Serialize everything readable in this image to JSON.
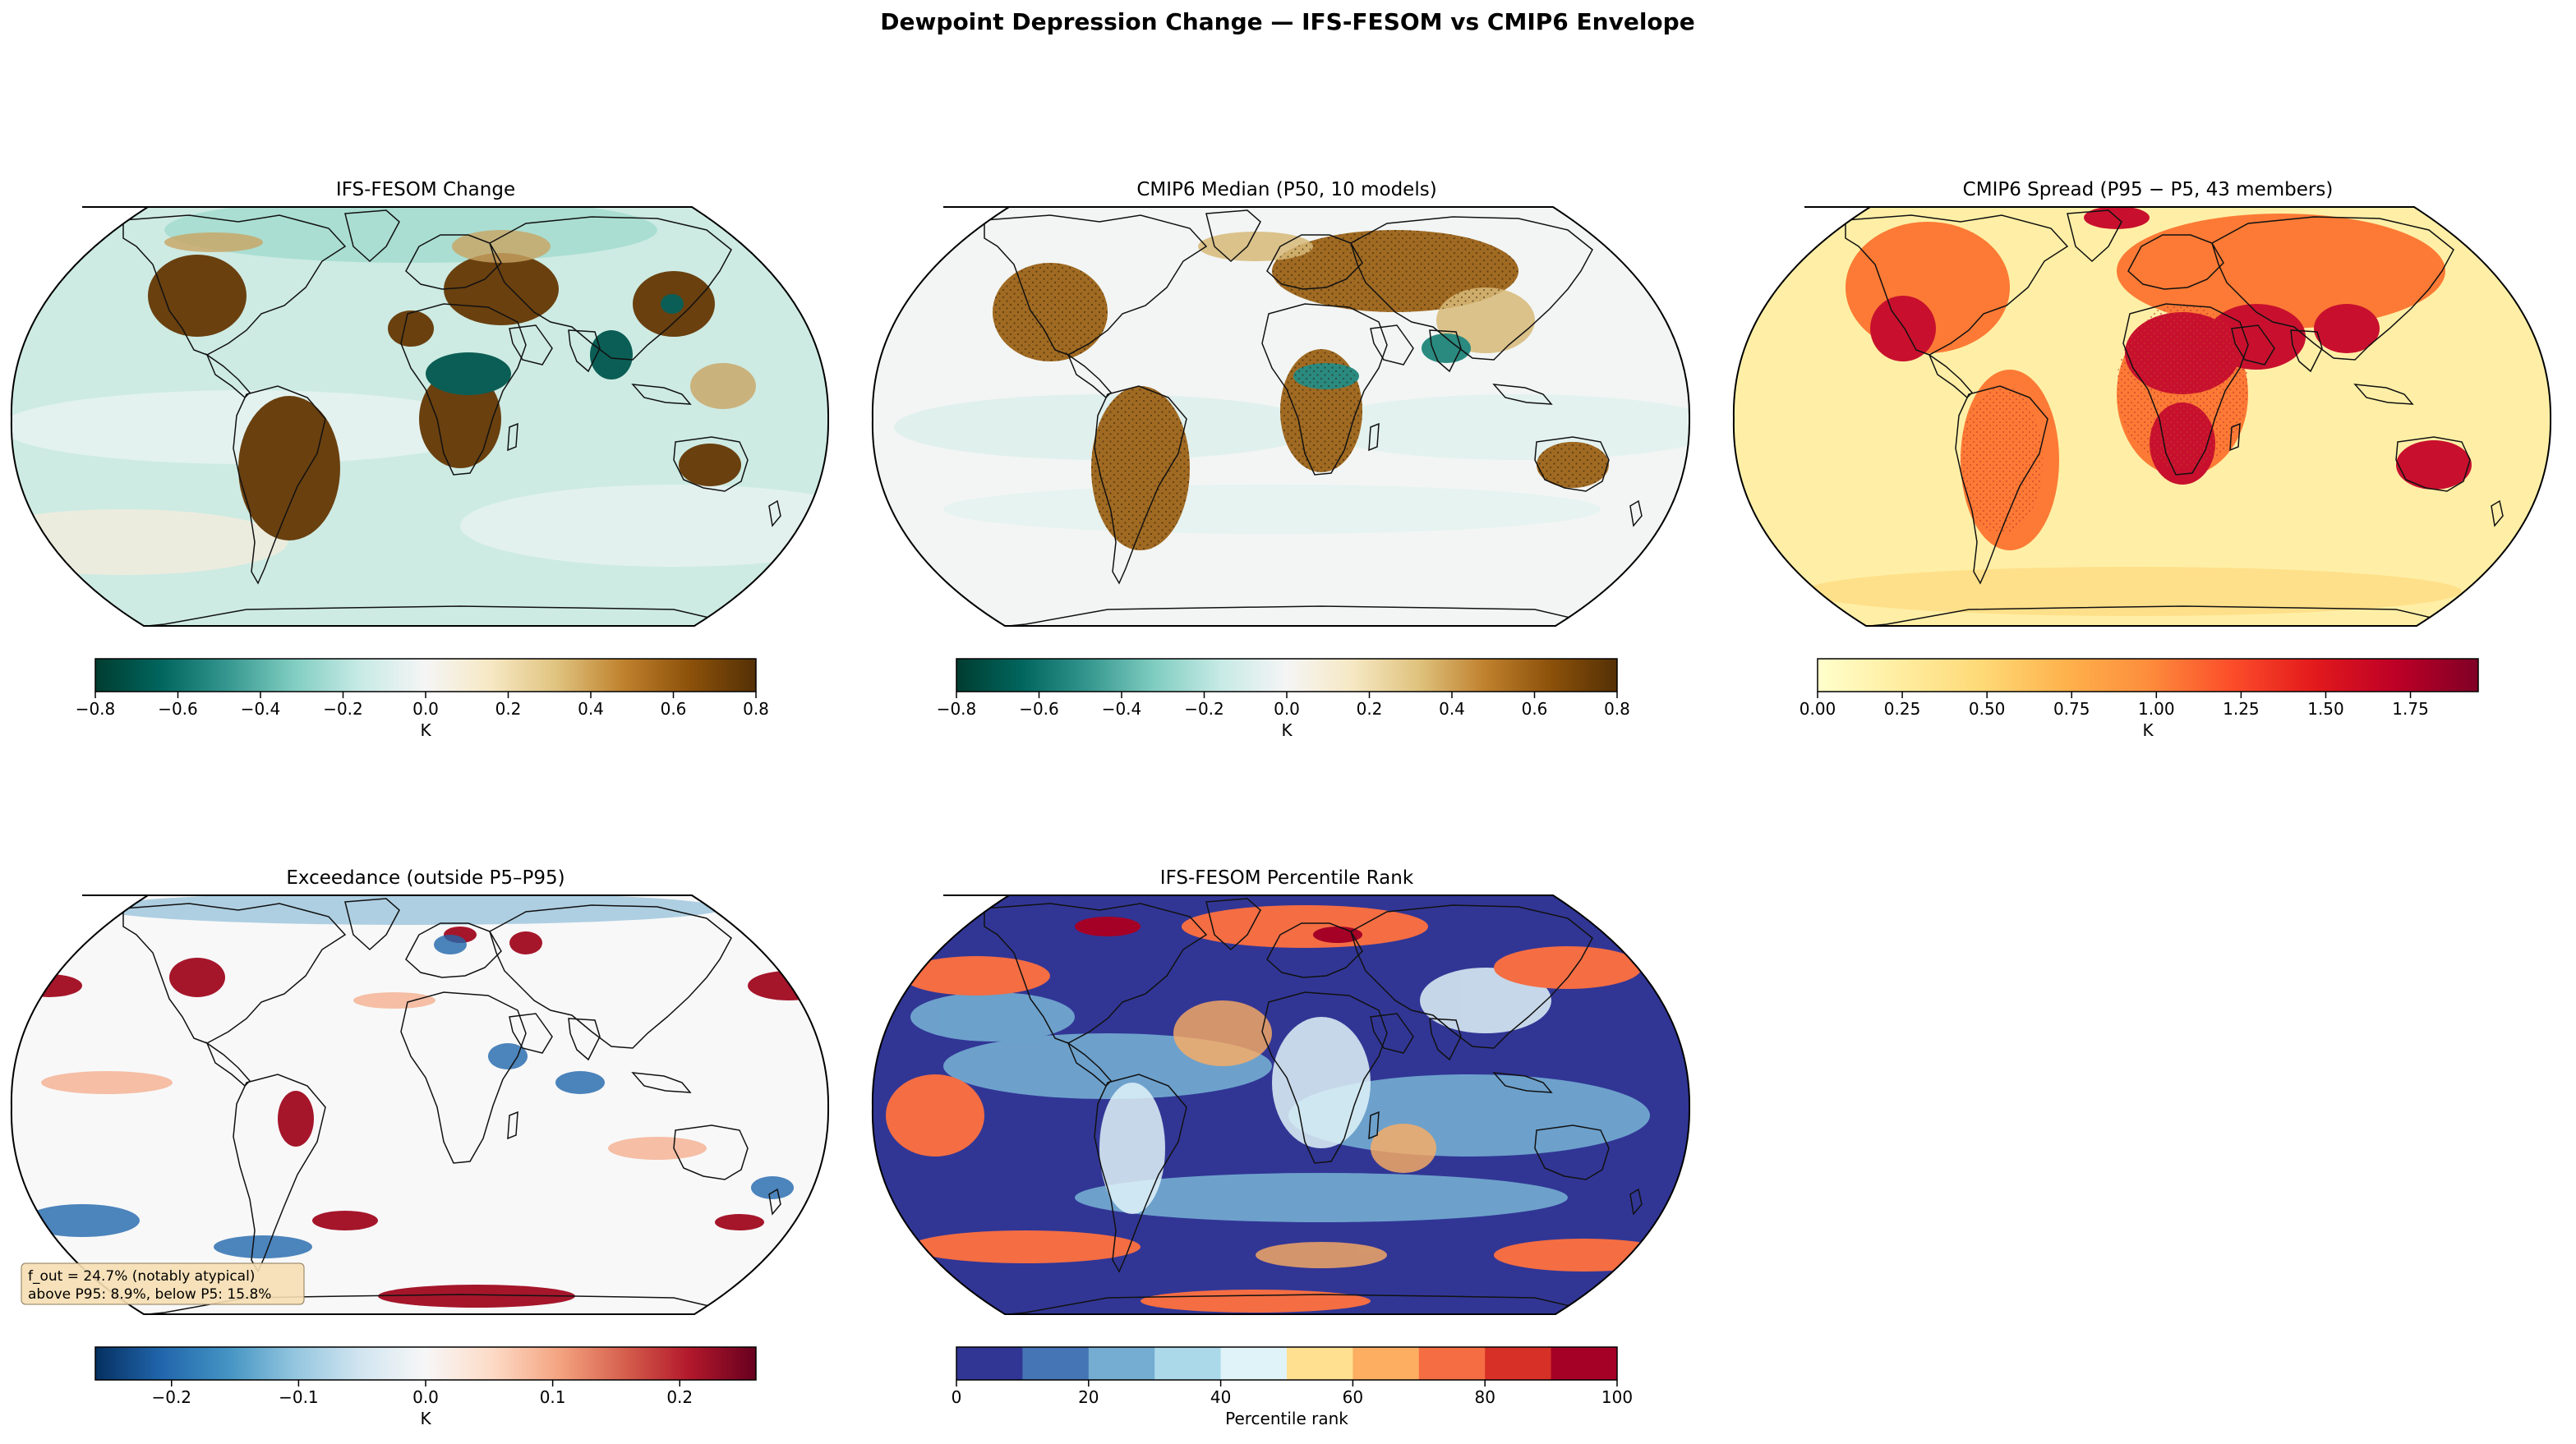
{
  "figure": {
    "title": "Dewpoint Depression Change — IFS-FESOM vs CMIP6 Envelope"
  },
  "colormaps": {
    "BrBG_r": [
      "#003c30",
      "#01665e",
      "#35978f",
      "#80cdc1",
      "#c7eae5",
      "#f5f5f5",
      "#f6e8c3",
      "#dfc27d",
      "#bf812d",
      "#8c510a",
      "#543005"
    ],
    "YlOrRd": [
      "#ffffcc",
      "#ffeda0",
      "#fed976",
      "#feb24c",
      "#fd8d3c",
      "#fc4e2a",
      "#e31a1c",
      "#bd0026",
      "#800026"
    ],
    "RdBu_r": [
      "#053061",
      "#2166ac",
      "#4393c3",
      "#92c5de",
      "#d1e5f0",
      "#f7f7f7",
      "#fddbc7",
      "#f4a582",
      "#d6604d",
      "#b2182b",
      "#67001f"
    ],
    "RdYlBu_r_10": [
      "#313695",
      "#4575b4",
      "#74add1",
      "#abd9e9",
      "#e0f3f8",
      "#fee090",
      "#fdae61",
      "#f46d43",
      "#d73027",
      "#a50026"
    ]
  },
  "panels": [
    {
      "id": "ifs-fesom-change",
      "title": "IFS-FESOM Change",
      "cmap": "BrBG_r",
      "colorbar": {
        "label": "K",
        "vmin": -0.8,
        "vmax": 0.8,
        "discrete": false,
        "ticks": [
          -0.8,
          -0.6,
          -0.4,
          -0.2,
          0.0,
          0.2,
          0.4,
          0.6,
          0.8
        ],
        "tick_labels": [
          "−0.8",
          "−0.6",
          "−0.4",
          "−0.2",
          "0.0",
          "0.2",
          "0.4",
          "0.6",
          "0.8"
        ]
      }
    },
    {
      "id": "cmip6-median",
      "title": "CMIP6 Median (P50, 10 models)",
      "cmap": "BrBG_r",
      "colorbar": {
        "label": "K",
        "vmin": -0.8,
        "vmax": 0.8,
        "discrete": false,
        "ticks": [
          -0.8,
          -0.6,
          -0.4,
          -0.2,
          0.0,
          0.2,
          0.4,
          0.6,
          0.8
        ],
        "tick_labels": [
          "−0.8",
          "−0.6",
          "−0.4",
          "−0.2",
          "0.0",
          "0.2",
          "0.4",
          "0.6",
          "0.8"
        ]
      }
    },
    {
      "id": "cmip6-spread",
      "title": "CMIP6 Spread (P95 − P5, 43 members)",
      "cmap": "YlOrRd",
      "colorbar": {
        "label": "K",
        "vmin": 0.0,
        "vmax": 1.95,
        "discrete": false,
        "ticks": [
          0.0,
          0.25,
          0.5,
          0.75,
          1.0,
          1.25,
          1.5,
          1.75
        ],
        "tick_labels": [
          "0.00",
          "0.25",
          "0.50",
          "0.75",
          "1.00",
          "1.25",
          "1.50",
          "1.75"
        ]
      }
    },
    {
      "id": "exceedance",
      "title": "Exceedance (outside P5–P95)",
      "cmap": "RdBu_r",
      "annotation": [
        "f_out = 24.7% (notably atypical)",
        "above P95: 8.9%, below P5: 15.8%"
      ],
      "colorbar": {
        "label": "K",
        "vmin": -0.26,
        "vmax": 0.26,
        "discrete": false,
        "ticks": [
          -0.2,
          -0.1,
          0.0,
          0.1,
          0.2
        ],
        "tick_labels": [
          "−0.2",
          "−0.1",
          "0.0",
          "0.1",
          "0.2"
        ]
      }
    },
    {
      "id": "percentile-rank",
      "title": "IFS-FESOM Percentile Rank",
      "cmap": "RdYlBu_r_10",
      "colorbar": {
        "label": "Percentile rank",
        "vmin": 0,
        "vmax": 100,
        "discrete": true,
        "ticks": [
          0,
          20,
          40,
          60,
          80,
          100
        ],
        "tick_labels": [
          "0",
          "20",
          "40",
          "60",
          "80",
          "100"
        ]
      }
    }
  ]
}
